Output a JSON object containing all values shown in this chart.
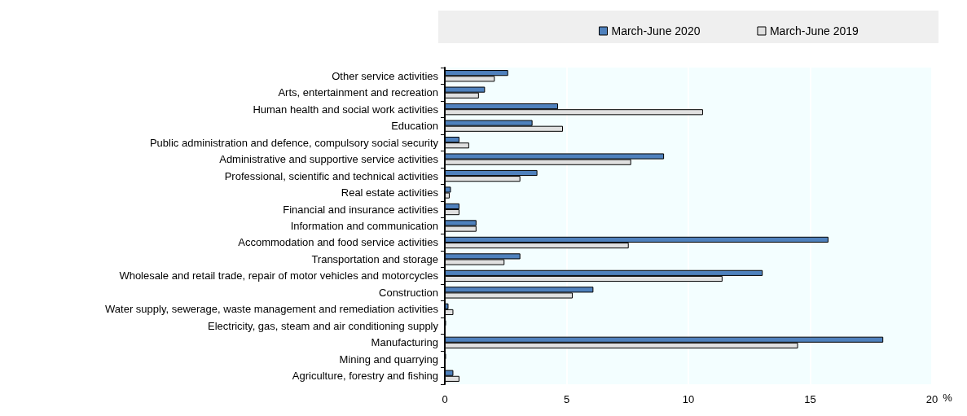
{
  "chart_data": {
    "type": "bar",
    "orientation": "horizontal",
    "xlabel": "%",
    "categories": [
      "Other service activities",
      "Arts, entertainment and recreation",
      "Human health and social work activities",
      "Education",
      "Public administration and defence, compulsory social security",
      "Administrative and supportive service activities",
      "Professional, scientific and technical activities",
      "Real estate activities",
      "Financial and insurance activities",
      "Information and communication",
      "Accommodation and food service activities",
      "Transportation and storage",
      "Wholesale and retail trade, repair of motor vehicles and motorcycles",
      "Construction",
      "Water supply, sewerage, waste management and remediation activities",
      "Electricity, gas, steam and air conditioning supply",
      "Manufacturing",
      "Mining and quarrying",
      "Agriculture, forestry and fishing"
    ],
    "series": [
      {
        "name": "March-June 2020",
        "color": "#4f81bd",
        "values": [
          2.6,
          1.65,
          4.65,
          3.6,
          0.6,
          9.0,
          3.8,
          0.25,
          0.6,
          1.3,
          15.75,
          3.1,
          13.05,
          6.1,
          0.15,
          0.05,
          18.0,
          0.05,
          0.35
        ]
      },
      {
        "name": "March-June 2019",
        "color": "#e0e0e0",
        "values": [
          2.05,
          1.4,
          10.6,
          4.85,
          1.0,
          7.65,
          3.1,
          0.2,
          0.6,
          1.3,
          7.55,
          2.45,
          11.4,
          5.25,
          0.35,
          null,
          14.5,
          null,
          0.6
        ]
      }
    ],
    "xlim": [
      0,
      20
    ],
    "xticks": [
      0,
      5,
      10,
      15,
      20
    ],
    "grid": "x",
    "legend": "top"
  }
}
